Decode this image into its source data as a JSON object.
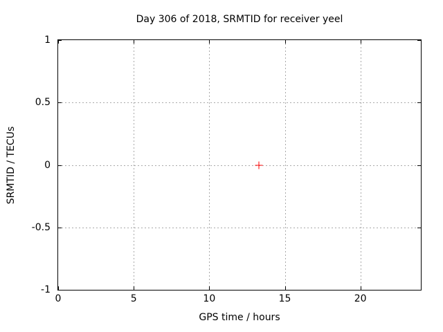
{
  "window": {
    "background": "#ffffff"
  },
  "chart_data": {
    "type": "scatter",
    "title": "Day 306 of 2018, SRMTID for receiver yeel",
    "xlabel": "GPS time / hours",
    "ylabel": "SRMTID / TECUs",
    "xlim": [
      0,
      24
    ],
    "ylim": [
      -1,
      1
    ],
    "grid": true,
    "legend_position": "none",
    "colors": {
      "border": "#000000",
      "grid": "#a8a8a8",
      "text": "#000000",
      "marker": "#ff0000"
    },
    "x_ticks": [
      {
        "value": 0,
        "label": "0"
      },
      {
        "value": 5,
        "label": "5"
      },
      {
        "value": 10,
        "label": "10"
      },
      {
        "value": 15,
        "label": "15"
      },
      {
        "value": 20,
        "label": "20"
      }
    ],
    "y_ticks": [
      {
        "value": -1,
        "label": "-1"
      },
      {
        "value": -0.5,
        "label": "-0.5"
      },
      {
        "value": 0,
        "label": "0"
      },
      {
        "value": 0.5,
        "label": "0.5"
      },
      {
        "value": 1,
        "label": "1"
      }
    ],
    "series": [
      {
        "name": "SRMTID",
        "marker": "plus",
        "color": "#ff0000",
        "points": [
          {
            "x": 13.3,
            "y": 0.0
          }
        ]
      }
    ]
  }
}
